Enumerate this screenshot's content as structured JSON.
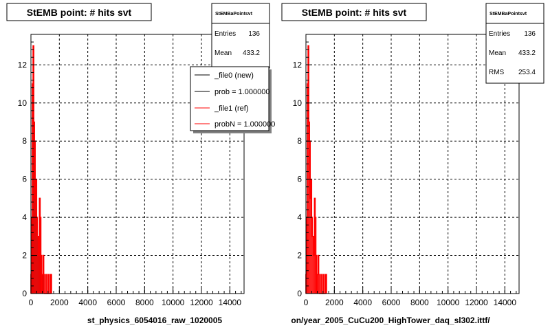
{
  "chart_data": [
    {
      "type": "bar",
      "title": "StEMB point: # hits svt",
      "xlabel": "st_physics_6054016_raw_1020005",
      "ylabel": "",
      "xlim": [
        0,
        15000
      ],
      "ylim": [
        0,
        13.6
      ],
      "x_ticks": [
        "0",
        "2000",
        "4000",
        "6000",
        "8000",
        "10000",
        "12000",
        "14000"
      ],
      "y_ticks": [
        "0",
        "2",
        "4",
        "6",
        "8",
        "10",
        "12"
      ],
      "grid": true,
      "stats_box": {
        "title": "StEMBaPointsvt",
        "rows": [
          {
            "label": "Entries",
            "value": "136"
          },
          {
            "label": "Mean",
            "value": "433.2"
          }
        ]
      },
      "legend": {
        "placement": "top-right",
        "entries": [
          {
            "label": "_file0 (new)",
            "color": "#000000"
          },
          {
            "label": "prob = 1.000000",
            "color": "#000000"
          },
          {
            "label": "_file1 (ref)",
            "color": "#ff0000"
          },
          {
            "label": "probN = 1.000000",
            "color": "#ff0000"
          }
        ]
      },
      "bin_width": 50,
      "bins_x": [
        0,
        50,
        100,
        150,
        200,
        250,
        300,
        350,
        400,
        450,
        500,
        550,
        600,
        650,
        700,
        750,
        800,
        850,
        900,
        950,
        1000,
        1050,
        1100,
        1150,
        1200,
        1250,
        1300,
        1350,
        1400
      ],
      "series": [
        {
          "color": "#000000",
          "values": [
            1,
            4,
            11,
            13,
            9,
            8,
            5,
            6,
            4,
            3,
            3,
            2,
            5,
            4,
            2,
            1,
            1,
            2,
            1,
            0,
            0,
            1,
            0,
            0,
            1,
            0,
            0,
            1,
            1
          ]
        },
        {
          "color": "#ff0000",
          "values": [
            1,
            4,
            11,
            13,
            9,
            8,
            5,
            6,
            4,
            3,
            3,
            2,
            5,
            4,
            2,
            1,
            1,
            2,
            1,
            0,
            0,
            1,
            0,
            0,
            1,
            0,
            0,
            1,
            1
          ]
        }
      ]
    },
    {
      "type": "bar",
      "title": "StEMB point: # hits svt",
      "xlabel": "on/year_2005_CuCu200_HighTower_daq_sl302.ittf/",
      "ylabel": "",
      "xlim": [
        0,
        15000
      ],
      "ylim": [
        0,
        13.6
      ],
      "x_ticks": [
        "0",
        "2000",
        "4000",
        "6000",
        "8000",
        "10000",
        "12000",
        "14000"
      ],
      "y_ticks": [
        "0",
        "2",
        "4",
        "6",
        "8",
        "10",
        "12"
      ],
      "grid": true,
      "stats_box": {
        "title": "StEMBaPointsvt",
        "rows": [
          {
            "label": "Entries",
            "value": "136"
          },
          {
            "label": "Mean",
            "value": "433.2"
          },
          {
            "label": "RMS",
            "value": "253.4"
          }
        ]
      },
      "bin_width": 50,
      "bins_x": [
        0,
        50,
        100,
        150,
        200,
        250,
        300,
        350,
        400,
        450,
        500,
        550,
        600,
        650,
        700,
        750,
        800,
        850,
        900,
        950,
        1000,
        1050,
        1100,
        1150,
        1200,
        1250,
        1300,
        1350,
        1400
      ],
      "series": [
        {
          "color": "#ff0000",
          "values": [
            1,
            4,
            11,
            13,
            9,
            8,
            5,
            6,
            4,
            3,
            3,
            2,
            5,
            4,
            2,
            1,
            1,
            2,
            1,
            0,
            0,
            1,
            0,
            0,
            1,
            0,
            0,
            1,
            1
          ]
        }
      ]
    }
  ]
}
